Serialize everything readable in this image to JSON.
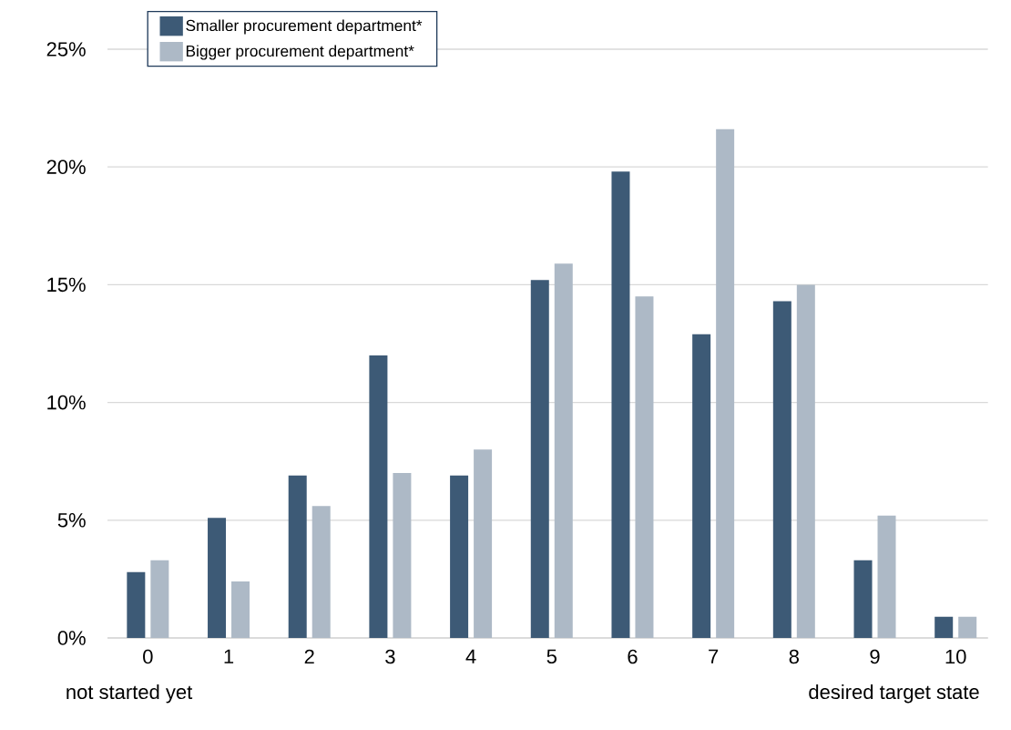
{
  "chart_data": {
    "type": "bar",
    "categories": [
      "0",
      "1",
      "2",
      "3",
      "4",
      "5",
      "6",
      "7",
      "8",
      "9",
      "10"
    ],
    "series": [
      {
        "name": "Smaller procurement department*",
        "color": "#3d5a76",
        "values": [
          2.8,
          5.1,
          6.9,
          12.0,
          6.9,
          15.2,
          19.8,
          12.9,
          14.3,
          3.3,
          0.9
        ]
      },
      {
        "name": "Bigger procurement department*",
        "color": "#adb9c6",
        "values": [
          3.3,
          2.4,
          5.6,
          7.0,
          8.0,
          15.9,
          14.5,
          21.6,
          15.0,
          5.2,
          0.9
        ]
      }
    ],
    "ylim": [
      0,
      25
    ],
    "yticks": [
      {
        "value": 0,
        "label": "0%"
      },
      {
        "value": 5,
        "label": "5%"
      },
      {
        "value": 10,
        "label": "10%"
      },
      {
        "value": 15,
        "label": "15%"
      },
      {
        "value": 20,
        "label": "20%"
      },
      {
        "value": 25,
        "label": "25%"
      }
    ],
    "grid": "y",
    "legend": "top left",
    "annotations": [
      "not started yet",
      "desired target state"
    ]
  }
}
